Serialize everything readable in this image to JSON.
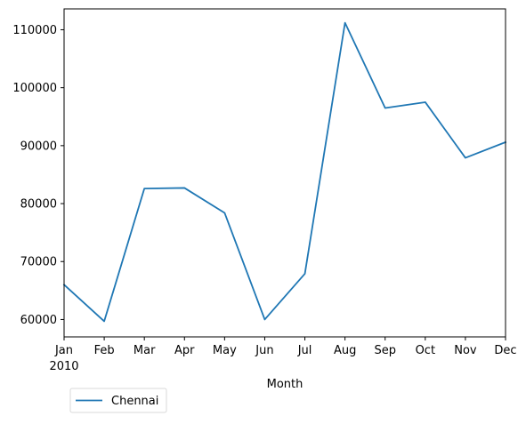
{
  "chart_data": {
    "type": "line",
    "title": "",
    "xlabel": "Month",
    "ylabel": "",
    "year_label": "2010",
    "categories": [
      "Jan",
      "Feb",
      "Mar",
      "Apr",
      "May",
      "Jun",
      "Jul",
      "Aug",
      "Sep",
      "Oct",
      "Nov",
      "Dec"
    ],
    "series": [
      {
        "name": "Chennai",
        "color": "#1f77b4",
        "values": [
          66000,
          59700,
          82600,
          82700,
          78400,
          60000,
          67900,
          111200,
          96500,
          97500,
          87900,
          90600
        ]
      }
    ],
    "ylim": [
      57000,
      113600
    ],
    "yticks": [
      60000,
      70000,
      80000,
      90000,
      100000,
      110000
    ],
    "grid": false,
    "legend_position": "below-left"
  }
}
